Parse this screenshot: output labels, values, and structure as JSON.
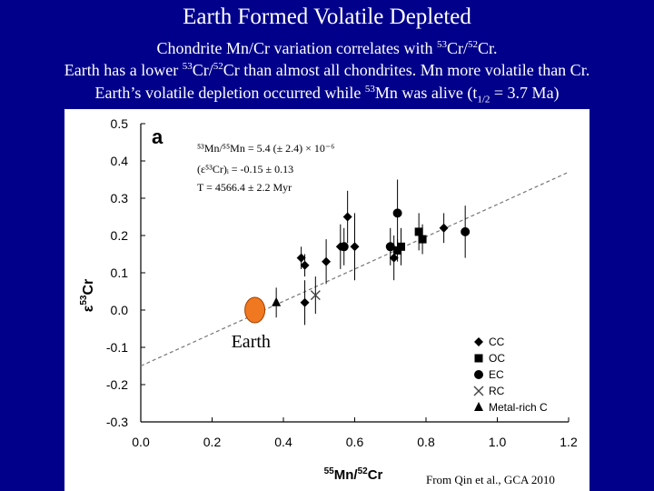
{
  "slide": {
    "title": "Earth Formed Volatile Depleted",
    "line1": {
      "pre": "Chondrite Mn/Cr variation correlates with ",
      "sup1": "53",
      "mid": "Cr/",
      "sup2": "52",
      "post": "Cr."
    },
    "line2": {
      "pre": "Earth has a lower ",
      "sup1": "53",
      "mid": "Cr/",
      "sup2": "52",
      "post": "Cr than almost all chondrites.  Mn more volatile than Cr."
    },
    "line3": {
      "pre": "Earth’s volatile depletion occurred while ",
      "sup1": "53",
      "mid": "Mn was alive (t",
      "sub": "1/2",
      "post": " = 3.7 Ma)"
    }
  },
  "chart_data": {
    "type": "scatter",
    "panel_label": "a",
    "xlabel": {
      "sup": "55",
      "a": "Mn/",
      "sup2": "52",
      "b": "Cr"
    },
    "ylabel": {
      "eps": "ε",
      "sup": "53",
      "b": "Cr"
    },
    "xlim": [
      0.0,
      1.2
    ],
    "ylim": [
      -0.3,
      0.5
    ],
    "xticks": [
      "0.0",
      "0.2",
      "0.4",
      "0.6",
      "0.8",
      "1.0",
      "1.2"
    ],
    "yticks": [
      "0.5",
      "0.4",
      "0.3",
      "0.2",
      "0.1",
      "0.0",
      "-0.1",
      "-0.2",
      "-0.3"
    ],
    "annotations": [
      "⁵³Mn/⁵⁵Mn = 5.4 (± 2.4) × 10⁻⁶",
      "(ε⁵³Cr)ᵢ = -0.15 ± 0.13",
      "T = 4566.4 ± 2.2 Myr"
    ],
    "fit_line": {
      "x": [
        0.0,
        1.2
      ],
      "y": [
        -0.15,
        0.37
      ]
    },
    "series": [
      {
        "name": "CC",
        "marker": "diamond",
        "points": [
          {
            "x": 0.45,
            "y": 0.14,
            "err": 0.03
          },
          {
            "x": 0.46,
            "y": 0.12,
            "err": 0.03
          },
          {
            "x": 0.46,
            "y": 0.02,
            "err": 0.06
          },
          {
            "x": 0.52,
            "y": 0.13,
            "err": 0.06
          },
          {
            "x": 0.56,
            "y": 0.17,
            "err": 0.06
          },
          {
            "x": 0.58,
            "y": 0.25,
            "err": 0.07
          },
          {
            "x": 0.6,
            "y": 0.17,
            "err": 0.09
          },
          {
            "x": 0.71,
            "y": 0.14,
            "err": 0.06
          },
          {
            "x": 0.85,
            "y": 0.22,
            "err": 0.04
          }
        ]
      },
      {
        "name": "OC",
        "marker": "square",
        "points": [
          {
            "x": 0.72,
            "y": 0.16,
            "err": 0.03
          },
          {
            "x": 0.73,
            "y": 0.17,
            "err": 0.05
          },
          {
            "x": 0.78,
            "y": 0.21,
            "err": 0.05
          },
          {
            "x": 0.79,
            "y": 0.19,
            "err": 0.04
          }
        ]
      },
      {
        "name": "EC",
        "marker": "circle",
        "points": [
          {
            "x": 0.57,
            "y": 0.17,
            "err": 0.05
          },
          {
            "x": 0.7,
            "y": 0.17,
            "err": 0.05
          },
          {
            "x": 0.72,
            "y": 0.26,
            "err": 0.09
          },
          {
            "x": 0.91,
            "y": 0.21,
            "err": 0.07
          }
        ]
      },
      {
        "name": "RC",
        "marker": "cross",
        "points": [
          {
            "x": 0.49,
            "y": 0.04,
            "err": 0.05
          }
        ]
      },
      {
        "name": "Metal-rich C",
        "marker": "triangle",
        "points": [
          {
            "x": 0.38,
            "y": 0.02,
            "err": 0.04
          }
        ]
      }
    ],
    "earth": {
      "label": "Earth",
      "x": 0.32,
      "y": 0.0,
      "color": "#f07820"
    },
    "credit": "From Qin et al., GCA 2010"
  }
}
